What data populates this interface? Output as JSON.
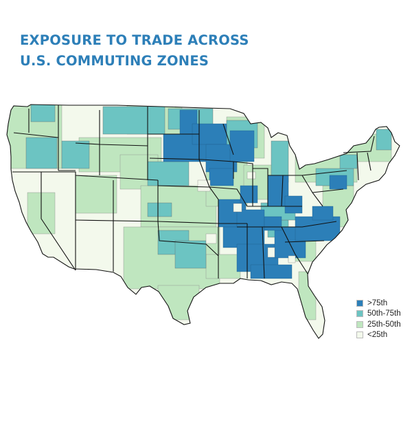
{
  "title": {
    "line1": "EXPOSURE TO TRADE ACROSS",
    "line2": "U.S. COMMUTING ZONES",
    "color": "#2d7fb8"
  },
  "legend": {
    "items": [
      {
        "label": ">75th",
        "color": "#2c7fb8"
      },
      {
        "label": "50th-75th",
        "color": "#6cc4c2"
      },
      {
        "label": "25th-50th",
        "color": "#bfe6bf"
      },
      {
        "label": "<25th",
        "color": "#f3f9ec"
      }
    ]
  },
  "map": {
    "base_fill": "#f3f9ec",
    "state_border_color": "#111111",
    "zone_border_color": "#777777"
  }
}
